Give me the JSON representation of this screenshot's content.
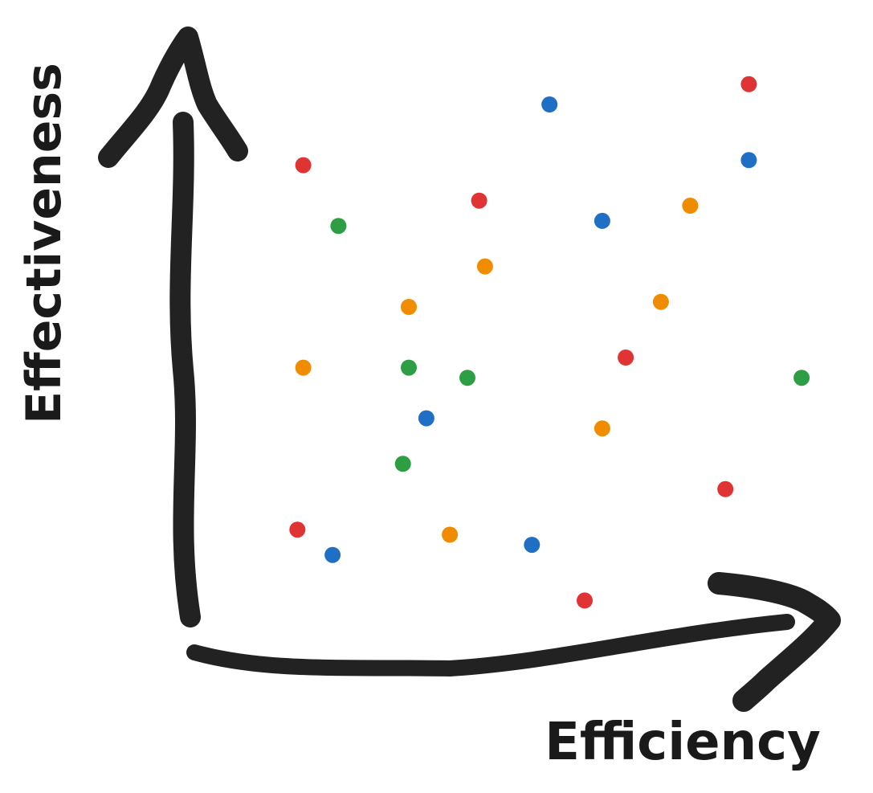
{
  "chart_data": {
    "type": "scatter",
    "title": "",
    "xlabel": "Efficiency",
    "ylabel": "Effectiveness",
    "grid": false,
    "legend": "none",
    "xlim": [
      0,
      100
    ],
    "ylim": [
      0,
      100
    ],
    "colors": {
      "red": "#e03333",
      "blue": "#1f6fc5",
      "green": "#2e9e45",
      "orange": "#f08c00"
    },
    "series": [
      {
        "color": "red",
        "points": [
          {
            "x": 12,
            "y": 88
          },
          {
            "x": 42,
            "y": 81
          },
          {
            "x": 88,
            "y": 104
          },
          {
            "x": 67,
            "y": 50
          },
          {
            "x": 84,
            "y": 24
          },
          {
            "x": 11,
            "y": 16
          },
          {
            "x": 60,
            "y": 2
          }
        ]
      },
      {
        "color": "blue",
        "points": [
          {
            "x": 54,
            "y": 100
          },
          {
            "x": 88,
            "y": 89
          },
          {
            "x": 63,
            "y": 77
          },
          {
            "x": 33,
            "y": 38
          },
          {
            "x": 51,
            "y": 13
          },
          {
            "x": 17,
            "y": 11
          }
        ]
      },
      {
        "color": "green",
        "points": [
          {
            "x": 18,
            "y": 76
          },
          {
            "x": 30,
            "y": 48
          },
          {
            "x": 40,
            "y": 46
          },
          {
            "x": 97,
            "y": 46
          },
          {
            "x": 29,
            "y": 29
          }
        ]
      },
      {
        "color": "orange",
        "points": [
          {
            "x": 78,
            "y": 80
          },
          {
            "x": 43,
            "y": 68
          },
          {
            "x": 30,
            "y": 60
          },
          {
            "x": 73,
            "y": 61
          },
          {
            "x": 12,
            "y": 48
          },
          {
            "x": 63,
            "y": 36
          },
          {
            "x": 37,
            "y": 15
          }
        ]
      }
    ]
  }
}
